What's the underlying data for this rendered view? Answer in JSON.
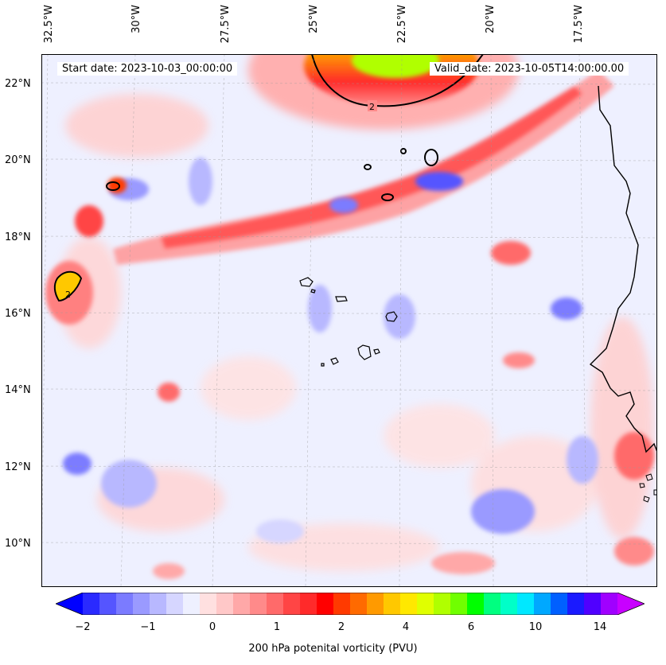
{
  "map": {
    "start_label": "Start date: 2023-10-03_00:00:00",
    "valid_label": "Valid_date: 2023-10-05T14:00:00.00",
    "lon_labels": [
      "32.5°W",
      "30°W",
      "27.5°W",
      "25°W",
      "22.5°W",
      "20°W",
      "17.5°W"
    ],
    "lat_labels": [
      "22°N",
      "20°N",
      "18°N",
      "16°N",
      "14°N",
      "12°N",
      "10°N"
    ],
    "contour_label": "2",
    "background_color": "#eef0ff"
  },
  "colorbar": {
    "label": "200 hPa potenital vorticity (PVU)",
    "ticks": [
      "−2",
      "−1",
      "0",
      "1",
      "2",
      "4",
      "6",
      "10",
      "14"
    ],
    "colors": [
      "#0000ff",
      "#2a2aff",
      "#5555ff",
      "#7b7bff",
      "#9a9aff",
      "#b8b8ff",
      "#d6d6ff",
      "#eef0ff",
      "#ffe0e0",
      "#ffc8c8",
      "#ffa8a8",
      "#ff8a8a",
      "#ff6a6a",
      "#ff4545",
      "#ff2a2a",
      "#ff0000",
      "#ff3a00",
      "#ff6a00",
      "#ff9a00",
      "#ffc800",
      "#ffe800",
      "#e0ff00",
      "#b0ff00",
      "#70ff00",
      "#00ff00",
      "#00ff80",
      "#00ffc8",
      "#00e8ff",
      "#00a8ff",
      "#0060ff",
      "#1a1aff",
      "#5000ff",
      "#a000ff",
      "#c800ff"
    ]
  }
}
